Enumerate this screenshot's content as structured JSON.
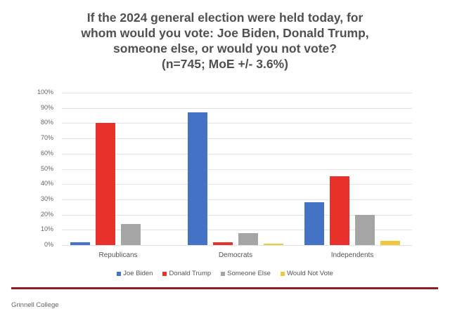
{
  "chart_data": {
    "type": "bar",
    "title": "If the 2024 general election were held today, for whom would you vote: Joe Biden, Donald Trump, someone else, or would you not vote? (n=745; MoE +/- 3.6%)",
    "title_lines": [
      "If the 2024 general election were held today, for",
      "whom would you vote: Joe Biden, Donald Trump,",
      "someone else, or would you not vote?",
      "(n=745; MoE +/- 3.6%)"
    ],
    "categories": [
      "Republicans",
      "Democrats",
      "Independents"
    ],
    "series": [
      {
        "name": "Joe Biden",
        "color": "#4472c4",
        "values": [
          2,
          87,
          28
        ]
      },
      {
        "name": "Donald Trump",
        "color": "#e8312a",
        "values": [
          80,
          2,
          45
        ]
      },
      {
        "name": "Someone Else",
        "color": "#a5a5a5",
        "values": [
          14,
          8,
          20
        ]
      },
      {
        "name": "Would Not Vote",
        "color": "#f0c93a",
        "values": [
          0,
          1,
          3
        ]
      }
    ],
    "xlabel": "",
    "ylabel": "",
    "ylim": [
      0,
      100
    ],
    "yticks": [
      "0%",
      "10%",
      "20%",
      "30%",
      "40%",
      "50%",
      "60%",
      "70%",
      "80%",
      "90%",
      "100%"
    ],
    "grid": true,
    "legend_position": "bottom"
  },
  "footer": {
    "source": "Grinnell College"
  }
}
